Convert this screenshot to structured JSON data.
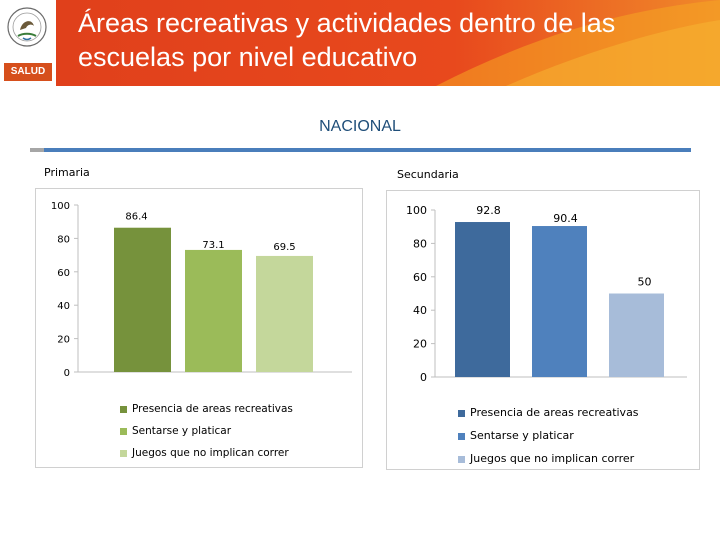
{
  "header": {
    "title": "Áreas recreativas y actividades dentro  de las escuelas por nivel educativo",
    "logo_label": "SALUD"
  },
  "subtitle": "NACIONAL",
  "colors": {
    "header": "#e8491d",
    "header_light": "#f5a623",
    "subtitle": "#1f4e79",
    "divider": "#4a7ebb",
    "primaria_series": [
      "#76923c",
      "#9bbb59",
      "#c4d79b"
    ],
    "secundaria_series": [
      "#3e6a9c",
      "#4f81bd",
      "#a7bcd9"
    ]
  },
  "chart_data": [
    {
      "type": "bar",
      "title": "Primaria",
      "categories": [
        "Presencia de areas recreativas",
        "Sentarse y platicar",
        "Juegos que no implican correr"
      ],
      "values": [
        86.4,
        73.1,
        69.5
      ],
      "value_labels": [
        "86.4",
        "73.1",
        "69.5"
      ],
      "yticks": [
        "100",
        "80",
        "60",
        "40",
        "20",
        "0"
      ],
      "ylim": [
        0,
        100
      ],
      "legend": "bottom"
    },
    {
      "type": "bar",
      "title": "Secundaria",
      "categories": [
        "Presencia de areas recreativas",
        "Sentarse y platicar",
        "Juegos que no implican correr"
      ],
      "values": [
        92.8,
        90.4,
        50
      ],
      "value_labels": [
        "92.8",
        "90.4",
        "50"
      ],
      "yticks": [
        "100",
        "80",
        "60",
        "40",
        "20",
        "0"
      ],
      "ylim": [
        0,
        100
      ],
      "legend": "bottom"
    }
  ]
}
